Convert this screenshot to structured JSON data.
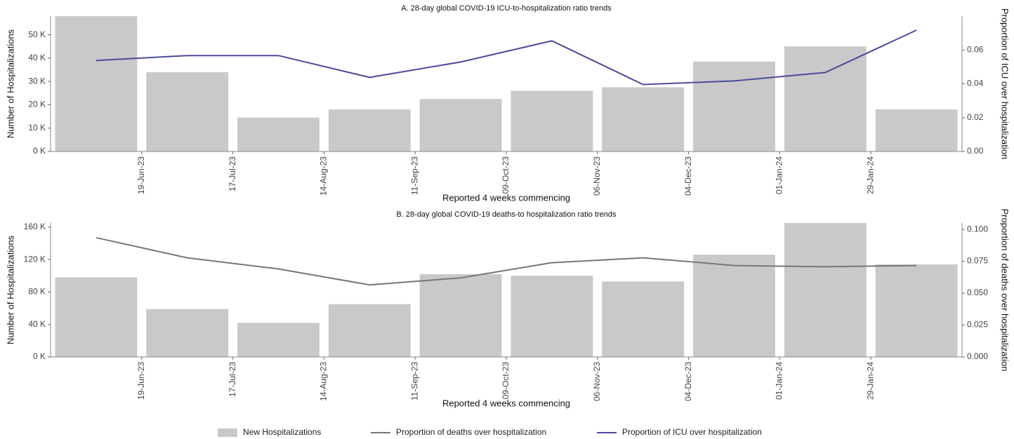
{
  "chart_data": [
    {
      "type": "combo",
      "title": "A. 28-day global COVID-19 ICU-to-hospitalization ratio trends",
      "x_label": "Reported 4 weeks commencing",
      "y_label": "Number of Hospitalizations",
      "y2_label": "Proportion of ICU over hospitalization",
      "categories": [
        null,
        null,
        null,
        null,
        null,
        null,
        null,
        null,
        null,
        null
      ],
      "xticks": [
        "19-Jun-23",
        "17-Jul-23",
        "14-Aug-23",
        "11-Sep-23",
        "09-Oct-23",
        "06-Nov-23",
        "04-Dec-23",
        "01-Jan-24",
        "29-Jan-24"
      ],
      "ylim": [
        0,
        58000
      ],
      "yticks": [
        {
          "value": 0,
          "label": "0 K"
        },
        {
          "value": 10000,
          "label": "10 K"
        },
        {
          "value": 20000,
          "label": "20 K"
        },
        {
          "value": 30000,
          "label": "30 K"
        },
        {
          "value": 40000,
          "label": "40 K"
        },
        {
          "value": 50000,
          "label": "50 K"
        }
      ],
      "y2lim": [
        0,
        0.08
      ],
      "y2ticks": [
        {
          "value": 0,
          "label": "0.00"
        },
        {
          "value": 0.02,
          "label": "0.02"
        },
        {
          "value": 0.04,
          "label": "0.04"
        },
        {
          "value": 0.06,
          "label": "0.06"
        }
      ],
      "series": [
        {
          "name": "New Hospitalizations",
          "type": "bar",
          "color": "#c9c9c9",
          "values": [
            58000,
            34000,
            14500,
            18000,
            22500,
            26000,
            27500,
            38500,
            45000,
            18000
          ]
        },
        {
          "name": "Proportion of ICU over hospitalization",
          "type": "line",
          "axis": "y2",
          "color": "#4b4b9c",
          "values": [
            0.0538,
            0.0567,
            0.0567,
            0.0438,
            0.0529,
            0.0654,
            0.0396,
            0.0417,
            0.0467,
            0.0717
          ]
        }
      ]
    },
    {
      "type": "combo",
      "title": "B. 28-day global COVID-19 deaths-to hospitalization ratio trends",
      "x_label": "Reported 4 weeks commencing",
      "y_label": "Number of Hospitalizations",
      "y2_label": "Proportion of deaths over hospitalization",
      "categories": [
        null,
        null,
        null,
        null,
        null,
        null,
        null,
        null,
        null,
        null
      ],
      "xticks": [
        "19-Jun-23",
        "17-Jul-23",
        "14-Aug-23",
        "11-Sep-23",
        "09-Oct-23",
        "06-Nov-23",
        "04-Dec-23",
        "01-Jan-24",
        "29-Jan-24"
      ],
      "ylim": [
        0,
        165000
      ],
      "yticks": [
        {
          "value": 0,
          "label": "0 K"
        },
        {
          "value": 40000,
          "label": "40 K"
        },
        {
          "value": 80000,
          "label": "80 K"
        },
        {
          "value": 120000,
          "label": "120 K"
        },
        {
          "value": 160000,
          "label": "160 K"
        }
      ],
      "y2lim": [
        0,
        0.105
      ],
      "y2ticks": [
        {
          "value": 0,
          "label": "0.000"
        },
        {
          "value": 0.025,
          "label": "0.025"
        },
        {
          "value": 0.05,
          "label": "0.050"
        },
        {
          "value": 0.075,
          "label": "0.075"
        },
        {
          "value": 0.1,
          "label": "0.100"
        }
      ],
      "series": [
        {
          "name": "New Hospitalizations",
          "type": "bar",
          "color": "#c9c9c9",
          "values": [
            98000,
            59000,
            42000,
            65000,
            102000,
            100000,
            93000,
            126000,
            165000,
            114000
          ]
        },
        {
          "name": "Proportion of deaths over hospitalization",
          "type": "line",
          "axis": "y2",
          "color": "#777777",
          "values": [
            0.0935,
            0.0777,
            0.069,
            0.0565,
            0.062,
            0.0739,
            0.0777,
            0.0717,
            0.0707,
            0.0717
          ]
        }
      ]
    }
  ]
}
